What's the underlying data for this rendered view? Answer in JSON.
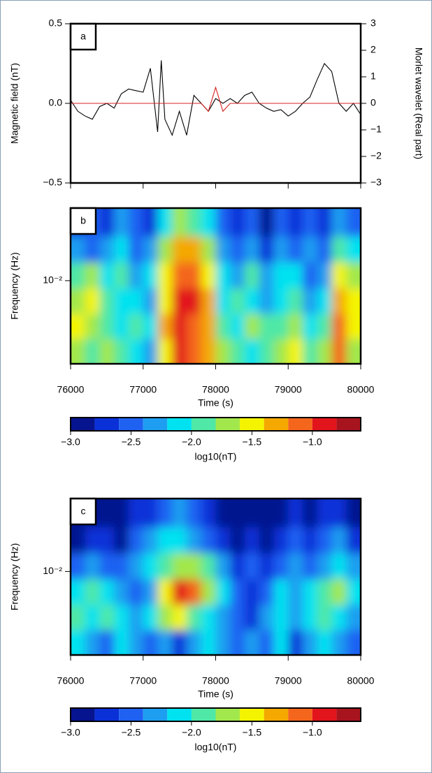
{
  "chart_data": [
    {
      "type": "line",
      "panel_label": "a",
      "ylabel": "Magnetic field (nT)",
      "y2label": "Morlet wavelet (Real part)",
      "xlim": [
        76000,
        80000
      ],
      "xticks": [
        76000,
        77000,
        78000,
        79000,
        80000
      ],
      "ylim": [
        -0.5,
        0.5
      ],
      "yticks": [
        {
          "value": -0.5,
          "label": "−0.5"
        },
        {
          "value": 0,
          "label": "0.0"
        },
        {
          "value": 0.5,
          "label": "0.5"
        }
      ],
      "y2lim": [
        -3,
        3
      ],
      "y2ticks": [
        {
          "value": -3,
          "label": "−3"
        },
        {
          "value": -2,
          "label": "−2"
        },
        {
          "value": -1,
          "label": "−1"
        },
        0,
        1,
        2,
        3
      ],
      "x": [
        76000,
        76100,
        76200,
        76300,
        76400,
        76500,
        76600,
        76700,
        76800,
        76900,
        77000,
        77100,
        77200,
        77250,
        77300,
        77400,
        77500,
        77600,
        77700,
        77800,
        77900,
        78000,
        78100,
        78200,
        78300,
        78400,
        78500,
        78600,
        78700,
        78800,
        78900,
        79000,
        79100,
        79200,
        79300,
        79400,
        79500,
        79600,
        79700,
        79800,
        79900,
        80000
      ],
      "series": [
        {
          "color": "#000000",
          "axis": "y",
          "values": [
            0.02,
            -0.05,
            -0.08,
            -0.1,
            -0.02,
            0.0,
            -0.03,
            0.06,
            0.09,
            0.08,
            0.07,
            0.22,
            -0.18,
            0.27,
            -0.1,
            -0.2,
            -0.05,
            -0.2,
            0.05,
            0.0,
            -0.05,
            0.03,
            0.0,
            0.03,
            0.0,
            0.05,
            0.07,
            0.0,
            -0.03,
            -0.05,
            -0.04,
            -0.08,
            -0.05,
            0.0,
            0.04,
            0.15,
            0.25,
            0.2,
            0.0,
            -0.05,
            0.0,
            -0.07
          ]
        },
        {
          "color": "#d62020",
          "axis": "y2",
          "values": [
            0,
            0,
            0,
            0,
            0,
            0,
            0,
            0,
            0,
            0,
            0,
            0,
            0,
            0,
            0,
            0,
            0,
            0,
            0,
            0,
            -0.3,
            0.6,
            -0.3,
            0,
            0,
            0,
            0,
            0,
            0,
            0,
            0,
            0,
            0,
            0,
            0,
            0,
            0,
            0,
            0,
            0,
            0,
            0
          ]
        }
      ]
    },
    {
      "type": "heatmap",
      "panel_label": "b",
      "ylabel": "Frequency (Hz)",
      "xlabel": "Time (s)",
      "log_y": true,
      "xlim": [
        76000,
        80000
      ],
      "xticks": [
        76000,
        77000,
        78000,
        79000,
        80000
      ],
      "ylim": [
        0.0035,
        0.025
      ],
      "yticks": [
        {
          "value": 0.01,
          "label": "10⁻²"
        }
      ],
      "x_edges": [
        76000,
        76200,
        76400,
        76600,
        76800,
        77000,
        77200,
        77400,
        77600,
        77800,
        78000,
        78200,
        78400,
        78600,
        78800,
        79000,
        79200,
        79400,
        79600,
        79800,
        80000
      ],
      "y_edges": [
        0.0035,
        0.0048,
        0.0066,
        0.0091,
        0.0126,
        0.0175,
        0.025
      ],
      "z": [
        [
          -1.7,
          -1.9,
          -1.7,
          -1.9,
          -2.1,
          -2.3,
          -1.5,
          -1.0,
          -1.1,
          -1.3,
          -1.7,
          -1.9,
          -2.1,
          -1.9,
          -1.7,
          -1.5,
          -1.9,
          -1.7,
          -1.1,
          -1.7
        ],
        [
          -1.5,
          -1.7,
          -1.9,
          -2.1,
          -1.9,
          -2.1,
          -1.3,
          -0.9,
          -1.1,
          -1.3,
          -1.9,
          -2.1,
          -1.7,
          -1.9,
          -1.9,
          -1.7,
          -2.1,
          -1.9,
          -1.1,
          -1.5
        ],
        [
          -1.7,
          -1.5,
          -1.9,
          -2.1,
          -2.1,
          -2.3,
          -1.5,
          -0.9,
          -1.0,
          -1.3,
          -2.1,
          -1.9,
          -2.1,
          -2.3,
          -2.1,
          -1.9,
          -2.3,
          -2.1,
          -1.3,
          -1.5
        ],
        [
          -1.9,
          -1.7,
          -2.1,
          -1.9,
          -2.3,
          -2.1,
          -1.5,
          -1.1,
          -1.1,
          -1.5,
          -2.1,
          -2.3,
          -1.9,
          -2.3,
          -2.1,
          -2.1,
          -2.5,
          -2.3,
          -1.5,
          -1.7
        ],
        [
          -2.3,
          -2.5,
          -2.3,
          -2.1,
          -2.5,
          -2.3,
          -1.7,
          -1.3,
          -1.3,
          -1.7,
          -2.3,
          -2.5,
          -2.3,
          -2.7,
          -2.3,
          -2.5,
          -2.3,
          -2.5,
          -1.9,
          -2.1
        ],
        [
          -2.7,
          -2.5,
          -2.7,
          -2.3,
          -2.5,
          -2.7,
          -2.1,
          -1.7,
          -1.9,
          -2.1,
          -2.5,
          -2.7,
          -2.5,
          -2.9,
          -2.5,
          -2.7,
          -2.5,
          -2.7,
          -2.3,
          -2.5
        ]
      ],
      "colorbar": {
        "label": "log10(nT)",
        "levels": [
          -3.0,
          -2.8,
          -2.6,
          -2.4,
          -2.2,
          -2.0,
          -1.8,
          -1.6,
          -1.4,
          -1.2,
          -1.0,
          -0.8,
          -0.6
        ],
        "colors": [
          "#06148f",
          "#0a30d8",
          "#1f62f2",
          "#1e9ef0",
          "#00e2f0",
          "#4fe8a6",
          "#a2e84c",
          "#f4f400",
          "#f4a800",
          "#f4661c",
          "#e2141c",
          "#a8141e"
        ],
        "ticks": [
          {
            "value": -3,
            "label": "−3.0"
          },
          {
            "value": -2.5,
            "label": "−2.5"
          },
          {
            "value": -2,
            "label": "−2.0"
          },
          {
            "value": -1.5,
            "label": "−1.5"
          },
          {
            "value": -1,
            "label": "−1.0"
          }
        ]
      }
    },
    {
      "type": "heatmap",
      "panel_label": "c",
      "ylabel": "Frequency (Hz)",
      "xlabel": "Time (s)",
      "log_y": true,
      "xlim": [
        76000,
        80000
      ],
      "xticks": [
        76000,
        77000,
        78000,
        79000,
        80000
      ],
      "ylim": [
        0.0035,
        0.025
      ],
      "yticks": [
        {
          "value": 0.01,
          "label": "10⁻²"
        }
      ],
      "x_edges": [
        76000,
        76200,
        76400,
        76600,
        76800,
        77000,
        77200,
        77400,
        77600,
        77800,
        78000,
        78200,
        78400,
        78600,
        78800,
        79000,
        79200,
        79400,
        79600,
        79800,
        80000
      ],
      "y_edges": [
        0.0035,
        0.0048,
        0.0066,
        0.0091,
        0.0126,
        0.0175,
        0.025
      ],
      "z": [
        [
          -2.1,
          -2.3,
          -2.5,
          -2.1,
          -2.3,
          -2.5,
          -2.3,
          -2.7,
          -2.3,
          -2.1,
          -2.3,
          -2.5,
          -2.3,
          -2.5,
          -2.1,
          -2.7,
          -2.3,
          -2.1,
          -2.3,
          -2.5
        ],
        [
          -1.9,
          -2.1,
          -1.9,
          -2.1,
          -2.3,
          -2.1,
          -1.7,
          -1.5,
          -1.9,
          -2.1,
          -2.3,
          -2.5,
          -2.7,
          -2.3,
          -2.1,
          -2.3,
          -2.1,
          -1.9,
          -2.1,
          -2.3
        ],
        [
          -2.1,
          -1.9,
          -2.1,
          -2.3,
          -2.5,
          -2.3,
          -1.5,
          -1.0,
          -1.1,
          -1.7,
          -2.1,
          -2.5,
          -2.7,
          -2.5,
          -2.1,
          -2.3,
          -2.1,
          -1.9,
          -1.7,
          -2.1
        ],
        [
          -2.5,
          -2.3,
          -2.5,
          -2.5,
          -2.3,
          -2.1,
          -1.9,
          -1.7,
          -1.7,
          -1.9,
          -2.3,
          -2.7,
          -2.5,
          -2.7,
          -2.5,
          -2.3,
          -2.5,
          -2.3,
          -2.1,
          -2.3
        ],
        [
          -2.9,
          -2.7,
          -2.7,
          -2.9,
          -2.5,
          -2.3,
          -2.1,
          -2.1,
          -2.3,
          -2.5,
          -2.7,
          -2.9,
          -2.7,
          -2.9,
          -2.7,
          -2.5,
          -2.7,
          -2.5,
          -2.3,
          -2.7
        ],
        [
          -2.9,
          -2.9,
          -2.9,
          -2.9,
          -2.7,
          -2.7,
          -2.5,
          -2.3,
          -2.5,
          -2.7,
          -2.9,
          -2.9,
          -2.9,
          -2.9,
          -2.9,
          -2.7,
          -2.9,
          -2.7,
          -2.7,
          -2.9
        ]
      ],
      "colorbar": {
        "label": "log10(nT)",
        "levels": [
          -3.0,
          -2.8,
          -2.6,
          -2.4,
          -2.2,
          -2.0,
          -1.8,
          -1.6,
          -1.4,
          -1.2,
          -1.0,
          -0.8,
          -0.6
        ],
        "colors": [
          "#06148f",
          "#0a30d8",
          "#1f62f2",
          "#1e9ef0",
          "#00e2f0",
          "#4fe8a6",
          "#a2e84c",
          "#f4f400",
          "#f4a800",
          "#f4661c",
          "#e2141c",
          "#a8141e"
        ],
        "ticks": [
          {
            "value": -3,
            "label": "−3.0"
          },
          {
            "value": -2.5,
            "label": "−2.5"
          },
          {
            "value": -2,
            "label": "−2.0"
          },
          {
            "value": -1.5,
            "label": "−1.5"
          },
          {
            "value": -1,
            "label": "−1.0"
          }
        ]
      }
    }
  ]
}
